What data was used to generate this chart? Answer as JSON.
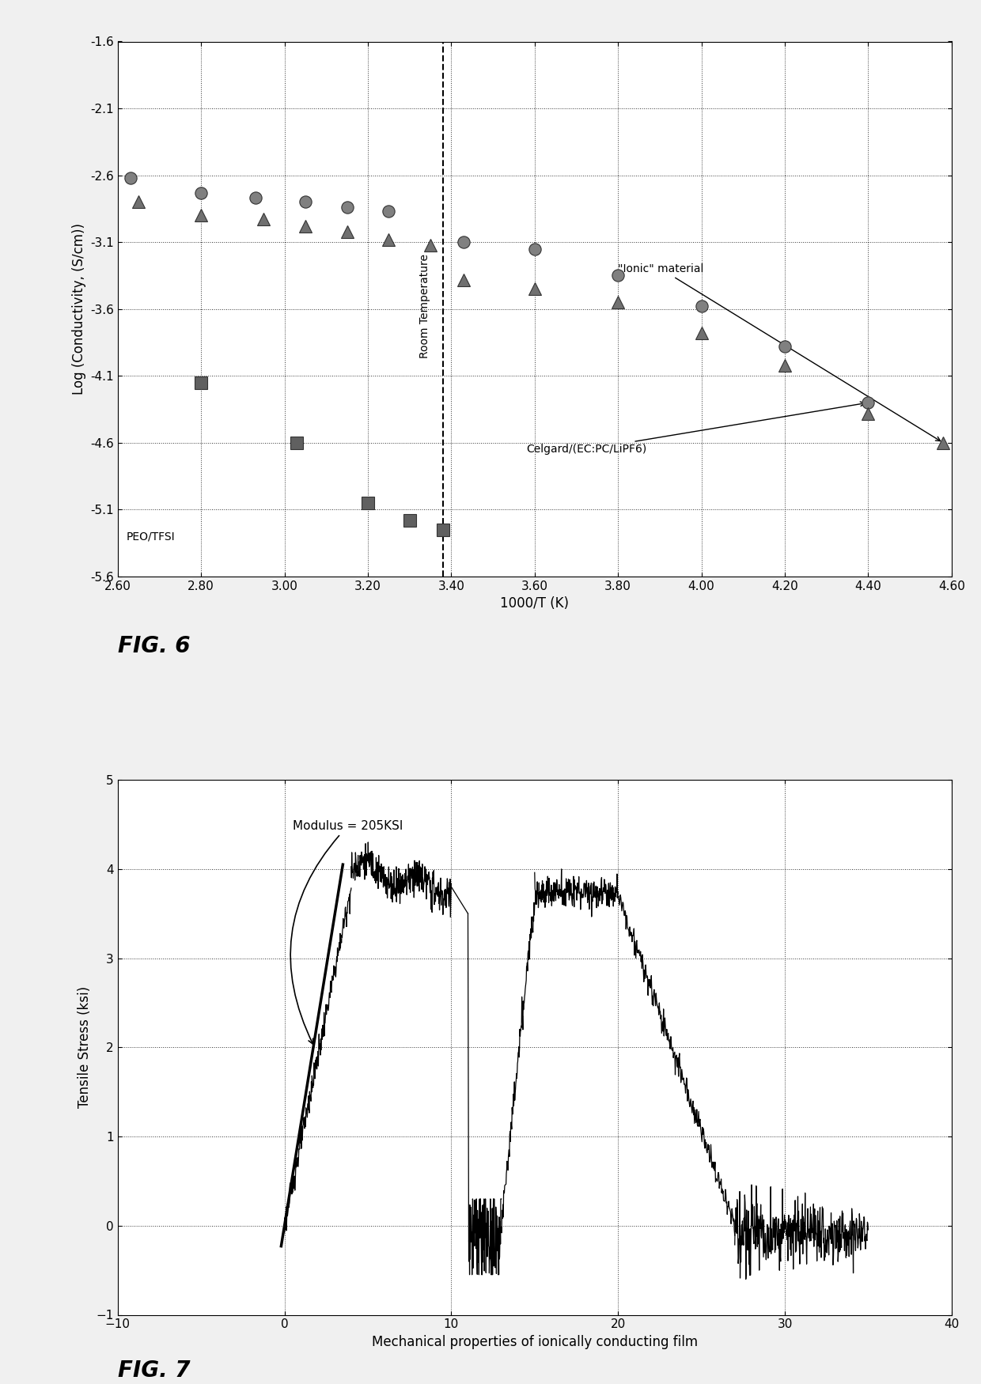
{
  "fig6": {
    "xlabel": "1000/T (K)",
    "ylabel": "Log (Conductivity, (S/cm))",
    "xlim": [
      2.6,
      4.6
    ],
    "ylim": [
      -5.6,
      -1.6
    ],
    "xticks": [
      2.6,
      2.8,
      3.0,
      3.2,
      3.4,
      3.6,
      3.8,
      4.0,
      4.2,
      4.4,
      4.6
    ],
    "yticks": [
      -5.6,
      -5.1,
      -4.6,
      -4.1,
      -3.6,
      -3.1,
      -2.6,
      -2.1,
      -1.6
    ],
    "room_temp_x": 3.38,
    "ionic_label": "\"Ionic\" material",
    "celgard_label": "Celgard/(EC:PC/LiPF6)",
    "peo_label": "PEO/TFSI",
    "circles_x": [
      2.63,
      2.8,
      2.93,
      3.05,
      3.15,
      3.25,
      3.43,
      3.6,
      3.8,
      4.0,
      4.2,
      4.4
    ],
    "circles_y": [
      -2.62,
      -2.73,
      -2.77,
      -2.8,
      -2.84,
      -2.87,
      -3.1,
      -3.15,
      -3.35,
      -3.58,
      -3.88,
      -4.3
    ],
    "triangles_x": [
      2.65,
      2.8,
      2.95,
      3.05,
      3.15,
      3.25,
      3.35,
      3.43,
      3.6,
      3.8,
      4.0,
      4.2,
      4.4,
      4.58
    ],
    "triangles_y": [
      -2.8,
      -2.9,
      -2.93,
      -2.98,
      -3.02,
      -3.08,
      -3.12,
      -3.38,
      -3.45,
      -3.55,
      -3.78,
      -4.02,
      -4.38,
      -4.6
    ],
    "squares_x": [
      2.8,
      3.03,
      3.2,
      3.3,
      3.38
    ],
    "squares_y": [
      -4.15,
      -4.6,
      -5.05,
      -5.18,
      -5.25
    ],
    "marker_color": "#555555"
  },
  "fig7": {
    "xlabel": "Mechanical properties of ionically conducting film",
    "ylabel": "Tensile Stress (ksi)",
    "xlim": [
      -10,
      40
    ],
    "ylim": [
      -1,
      5
    ],
    "xticks": [
      -10,
      0,
      10,
      20,
      30,
      40
    ],
    "yticks": [
      -1,
      0,
      1,
      2,
      3,
      4,
      5
    ],
    "modulus_label": "Modulus = 205KSI"
  }
}
